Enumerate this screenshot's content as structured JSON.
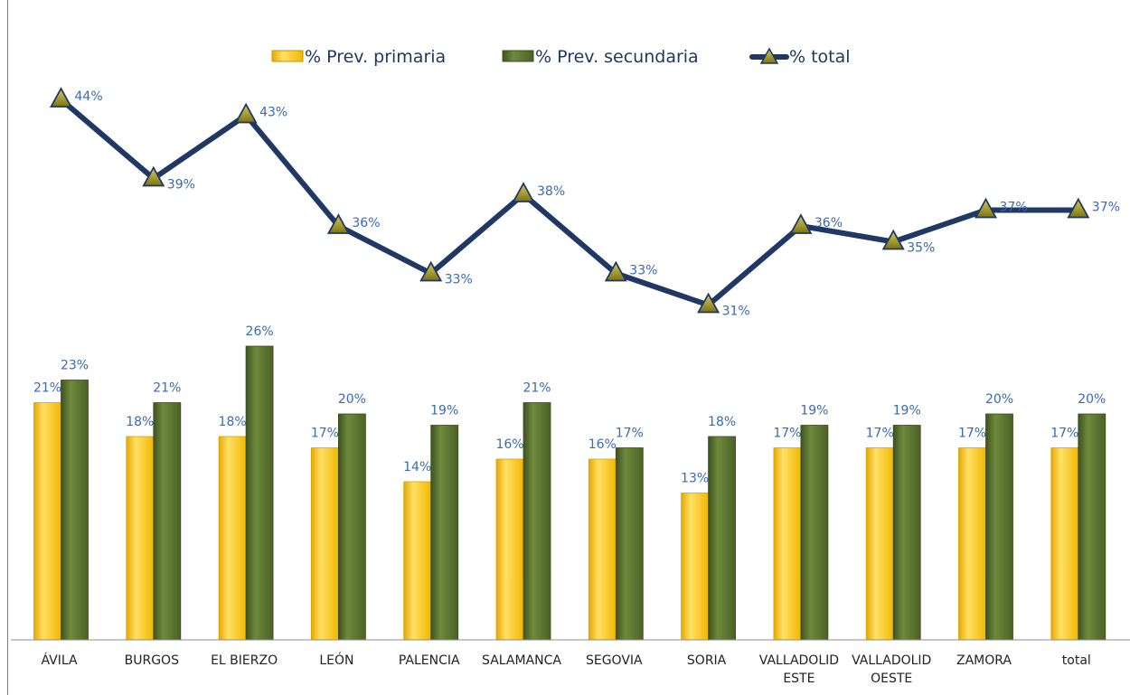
{
  "chart_data": {
    "type": "bar",
    "categories": [
      "ÁVILA",
      "BURGOS",
      "EL BIERZO",
      "LEÓN",
      "PALENCIA",
      "SALAMANCA",
      "SEGOVIA",
      "SORIA",
      "VALLADOLID ESTE",
      "VALLADOLID OESTE",
      "ZAMORA",
      "total"
    ],
    "category_lines": [
      [
        "ÁVILA"
      ],
      [
        "BURGOS"
      ],
      [
        "EL BIERZO"
      ],
      [
        "LEÓN"
      ],
      [
        "PALENCIA"
      ],
      [
        "SALAMANCA"
      ],
      [
        "SEGOVIA"
      ],
      [
        "SORIA"
      ],
      [
        "VALLADOLID",
        "ESTE"
      ],
      [
        "VALLADOLID",
        "OESTE"
      ],
      [
        "ZAMORA"
      ],
      [
        "total"
      ]
    ],
    "series": [
      {
        "name": "% Prev. primaria",
        "kind": "bar",
        "color": "#ffc000",
        "values": [
          21,
          18,
          18,
          17,
          14,
          16,
          16,
          13,
          17,
          17,
          17,
          17
        ],
        "labels": [
          "21%",
          "18%",
          "18%",
          "17%",
          "14%",
          "16%",
          "16%",
          "13%",
          "17%",
          "17%",
          "17%",
          "17%"
        ]
      },
      {
        "name": "% Prev. secundaria",
        "kind": "bar",
        "color": "#556b2f",
        "values": [
          23,
          21,
          26,
          20,
          19,
          21,
          17,
          18,
          19,
          19,
          20,
          20
        ],
        "labels": [
          "23%",
          "21%",
          "26%",
          "20%",
          "19%",
          "21%",
          "17%",
          "18%",
          "19%",
          "19%",
          "20%",
          "20%"
        ]
      },
      {
        "name": "% total",
        "kind": "line",
        "color": "#1f3864",
        "marker": "triangle",
        "marker_color": "#a49a2a",
        "values": [
          44,
          39,
          43,
          36,
          33,
          38,
          33,
          31,
          36,
          35,
          37,
          37
        ],
        "labels": [
          "44%",
          "39%",
          "43%",
          "36%",
          "33%",
          "38%",
          "33%",
          "31%",
          "36%",
          "35%",
          "37%",
          "37%"
        ]
      }
    ],
    "ylabel": "",
    "xlabel": "",
    "ylim": [
      0,
      47
    ],
    "grid": false,
    "legend": "top-center"
  }
}
